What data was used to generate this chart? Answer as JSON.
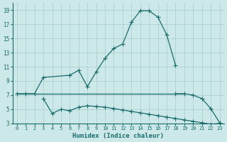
{
  "xlabel": "Humidex (Indice chaleur)",
  "background_color": "#cce8e8",
  "grid_color": "#a8cccc",
  "line_color": "#1a6b6b",
  "xlim": [
    -0.5,
    23.5
  ],
  "ylim": [
    3,
    20
  ],
  "xticks": [
    0,
    1,
    2,
    3,
    4,
    5,
    6,
    7,
    8,
    9,
    10,
    11,
    12,
    13,
    14,
    15,
    16,
    17,
    18,
    19,
    20,
    21,
    22,
    23
  ],
  "yticks": [
    3,
    5,
    7,
    9,
    11,
    13,
    15,
    17,
    19
  ],
  "line1_x": [
    0,
    1,
    2,
    3,
    6,
    7,
    8,
    9,
    10,
    11,
    12,
    13,
    14,
    15,
    16,
    17,
    18
  ],
  "line1_y": [
    7.2,
    7.2,
    7.2,
    9.5,
    9.8,
    10.5,
    8.2,
    10.3,
    12.2,
    13.6,
    14.2,
    17.3,
    18.9,
    18.9,
    18.0,
    15.5,
    11.2
  ],
  "line2_x": [
    0,
    1,
    2,
    3,
    19
  ],
  "line2_y": [
    7.2,
    7.2,
    7.2,
    7.2,
    7.2
  ],
  "line2b_x": [
    18,
    19,
    20,
    21,
    22,
    23
  ],
  "line2b_y": [
    7.2,
    7.2,
    7.0,
    6.5,
    5.1,
    3.1
  ],
  "line3_x": [
    3,
    4,
    5,
    6,
    7,
    8,
    9,
    10,
    11,
    12,
    13,
    14,
    15,
    16,
    17,
    18,
    19,
    20,
    21,
    22,
    23
  ],
  "line3_y": [
    6.5,
    4.4,
    5.0,
    4.8,
    5.3,
    5.5,
    5.4,
    5.3,
    5.1,
    4.9,
    4.7,
    4.5,
    4.3,
    4.1,
    3.9,
    3.7,
    3.5,
    3.3,
    3.1,
    2.9,
    3.0
  ]
}
